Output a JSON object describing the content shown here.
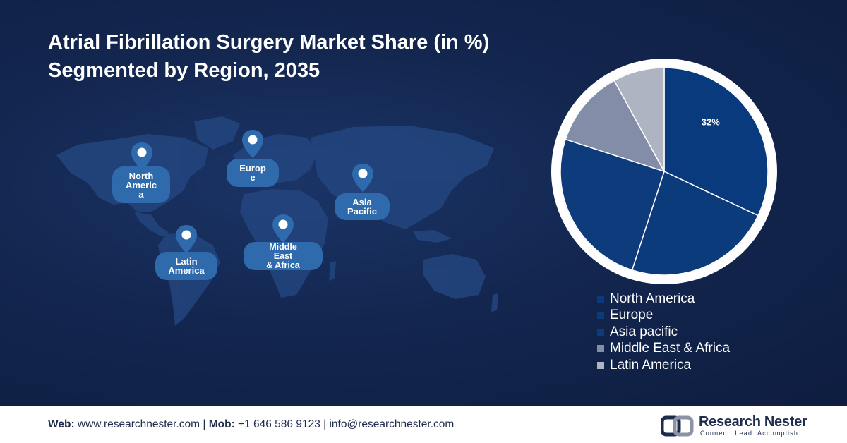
{
  "title": {
    "line1": "Atrial Fibrillation Surgery Market Share (in %)",
    "line2": "Segmented by Region, 2035"
  },
  "map_regions": [
    {
      "id": "north-america",
      "label": "North\nAmeric\na"
    },
    {
      "id": "europe",
      "label": "Europ\ne"
    },
    {
      "id": "asia-pacific",
      "label": "Asia\nPacific"
    },
    {
      "id": "latin-america",
      "label": "Latin\nAmerica"
    },
    {
      "id": "middle-east-africa",
      "label": "Middle\nEast\n& Africa"
    }
  ],
  "chart_data": {
    "type": "pie",
    "title": "Atrial Fibrillation Surgery Market Share (in %) Segmented by Region, 2035",
    "categories": [
      "North America",
      "Europe",
      "Asia pacific",
      "Middle East & Africa",
      "Latin America"
    ],
    "values": [
      32,
      23,
      25,
      12,
      8
    ],
    "data_labels": [
      "32%",
      "",
      "",
      "",
      ""
    ],
    "colors": [
      "#0a3a7e",
      "#0c3b7c",
      "#0d3b7b",
      "#838da7",
      "#aeb4c2"
    ],
    "legend_position": "bottom-right"
  },
  "footer": {
    "web_label": "Web:",
    "web_value": " www.researchnester.com | ",
    "mob_label": "Mob:",
    "mob_value": " +1 646 586 9123 | info@researchnester.com"
  },
  "logo": {
    "name": "Research Nester",
    "tagline": "Connect. Lead. Accomplish"
  },
  "colors": {
    "background": "#13264f",
    "accent": "#2f6aad",
    "footer_bg": "#ffffff",
    "footer_text": "#1f2d4d"
  }
}
